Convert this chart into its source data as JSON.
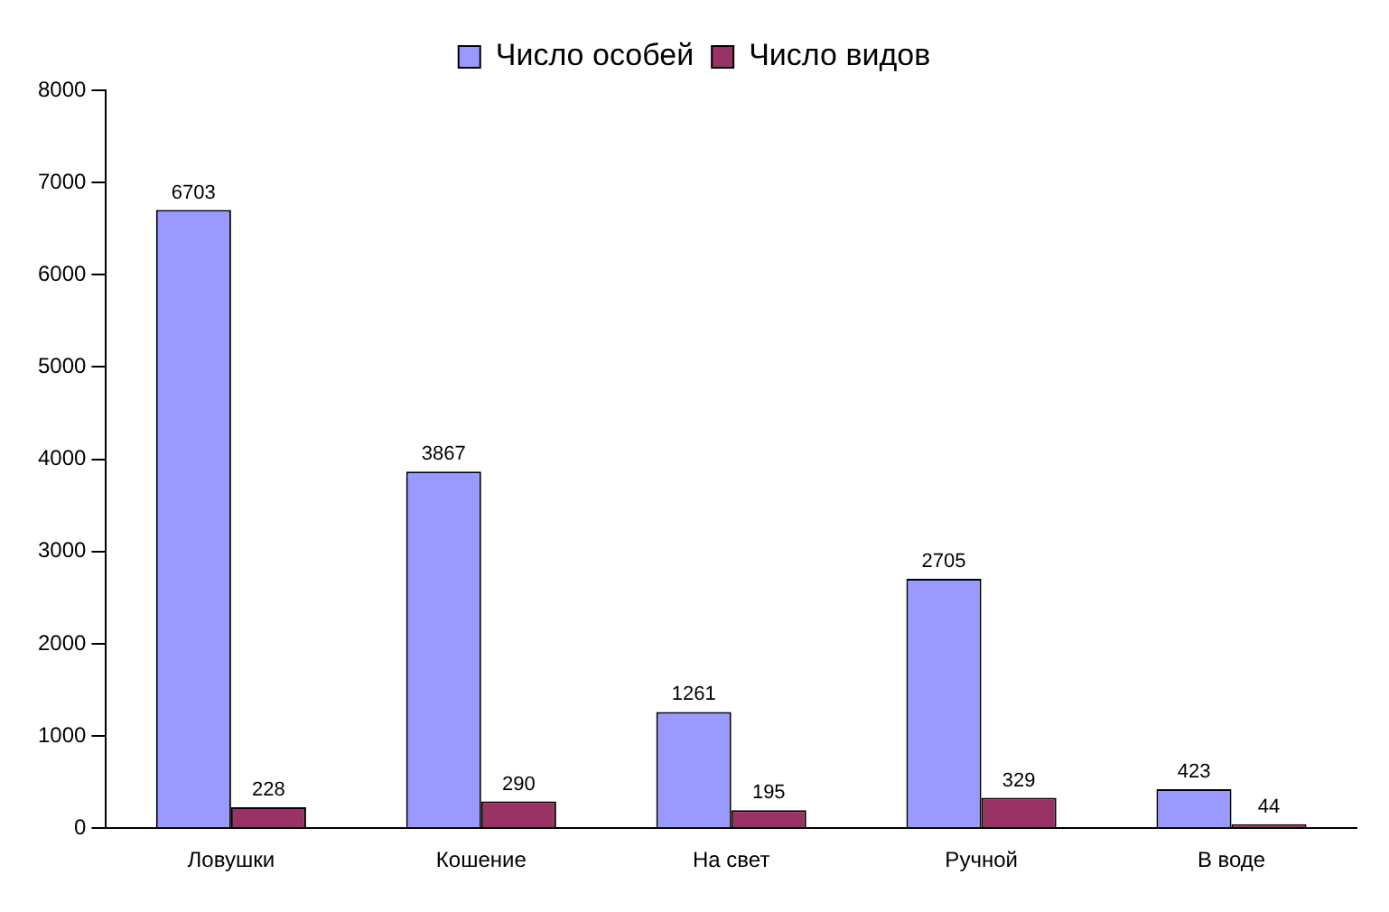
{
  "chart_data": {
    "type": "bar",
    "categories": [
      "Ловушки",
      "Кошение",
      "На свет",
      "Ручной",
      "В воде"
    ],
    "series": [
      {
        "name": "Число особей",
        "color": "#9999ff",
        "values": [
          6703,
          3867,
          1261,
          2705,
          423
        ]
      },
      {
        "name": "Число видов",
        "color": "#993366",
        "values": [
          228,
          290,
          195,
          329,
          44
        ]
      }
    ],
    "ylim": [
      0,
      8000
    ],
    "yticks": [
      0,
      1000,
      2000,
      3000,
      4000,
      5000,
      6000,
      7000,
      8000
    ],
    "grid": false,
    "legend": "top",
    "data_labels": true
  }
}
